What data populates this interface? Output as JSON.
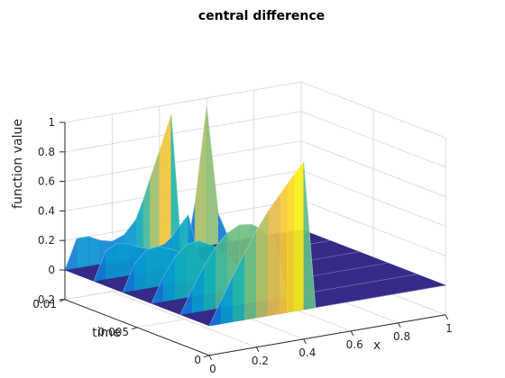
{
  "chart_data": {
    "type": "surface",
    "title": "central difference",
    "xlabel": "x",
    "ylabel": "time",
    "zlabel": "function value",
    "xlim": [
      0,
      1
    ],
    "ylim": [
      0,
      0.01
    ],
    "zlim": [
      -0.2,
      1
    ],
    "x_ticks": [
      "0",
      "0.2",
      "0.4",
      "0.6",
      "0.8",
      "1"
    ],
    "y_ticks": [
      "0",
      "0.005",
      "0.01"
    ],
    "z_ticks": [
      "-0.2",
      "0",
      "0.2",
      "0.4",
      "0.6",
      "0.8",
      "1"
    ],
    "colormap": "parula",
    "grid": true,
    "series": [
      {
        "time": 0.0,
        "x": [
          0,
          0.05,
          0.1,
          0.15,
          0.2,
          0.25,
          0.3,
          0.33,
          0.36,
          0.4,
          0.45,
          0.5,
          0.6,
          0.7,
          0.8,
          0.9,
          1.0
        ],
        "z": [
          0,
          0.155,
          0.31,
          0.45,
          0.59,
          0.71,
          0.81,
          0.87,
          0.93,
          1.0,
          0,
          0,
          0,
          0,
          0,
          0,
          0
        ]
      },
      {
        "time": 0.002,
        "x": [
          0,
          0.05,
          0.1,
          0.15,
          0.2,
          0.25,
          0.3,
          0.33,
          0.36,
          0.4,
          0.45,
          0.5,
          0.6,
          0.7,
          0.8,
          0.9,
          1.0
        ],
        "z": [
          0,
          0.16,
          0.3,
          0.42,
          0.5,
          0.54,
          0.53,
          0.5,
          0.45,
          0.4,
          0,
          0,
          0,
          0,
          0,
          0,
          0
        ]
      },
      {
        "time": 0.004,
        "x": [
          0,
          0.05,
          0.1,
          0.15,
          0.2,
          0.25,
          0.3,
          0.33,
          0.36,
          0.4,
          0.45,
          0.5,
          0.6,
          0.7,
          0.8,
          0.9,
          1.0
        ],
        "z": [
          0,
          0.17,
          0.29,
          0.36,
          0.37,
          0.33,
          0.27,
          0.22,
          0.15,
          0.08,
          0,
          0,
          0,
          0,
          0,
          0,
          0
        ]
      },
      {
        "time": 0.006,
        "x": [
          0,
          0.05,
          0.1,
          0.15,
          0.2,
          0.25,
          0.3,
          0.33,
          0.36,
          0.4,
          0.45,
          0.5,
          0.6,
          0.7,
          0.8,
          0.9,
          1.0
        ],
        "z": [
          0,
          0.18,
          0.26,
          0.27,
          0.24,
          0.2,
          0.16,
          0.13,
          0.1,
          0.06,
          0,
          0,
          0,
          0,
          0,
          0,
          0
        ]
      },
      {
        "time": 0.008,
        "x": [
          0,
          0.05,
          0.1,
          0.15,
          0.2,
          0.25,
          0.3,
          0.33,
          0.36,
          0.4,
          0.45,
          0.5,
          0.6,
          0.7,
          0.8,
          0.9,
          1.0
        ],
        "z": [
          0,
          0.19,
          0.23,
          0.21,
          0.17,
          0.15,
          0.17,
          0.21,
          0.27,
          0.34,
          0,
          0,
          0,
          0,
          0,
          0,
          0
        ]
      },
      {
        "time": 0.01,
        "x": [
          0,
          0.05,
          0.1,
          0.15,
          0.2,
          0.25,
          0.3,
          0.33,
          0.36,
          0.4,
          0.45,
          0.5,
          0.55,
          0.6,
          0.65,
          0.7,
          0.8,
          0.9,
          1.0
        ],
        "z": [
          0,
          0.2,
          0.2,
          0.16,
          0.14,
          0.17,
          0.26,
          0.38,
          0.52,
          0.7,
          0.93,
          -0.15,
          0.3,
          0.95,
          0.2,
          0,
          0,
          0,
          0
        ]
      }
    ]
  }
}
